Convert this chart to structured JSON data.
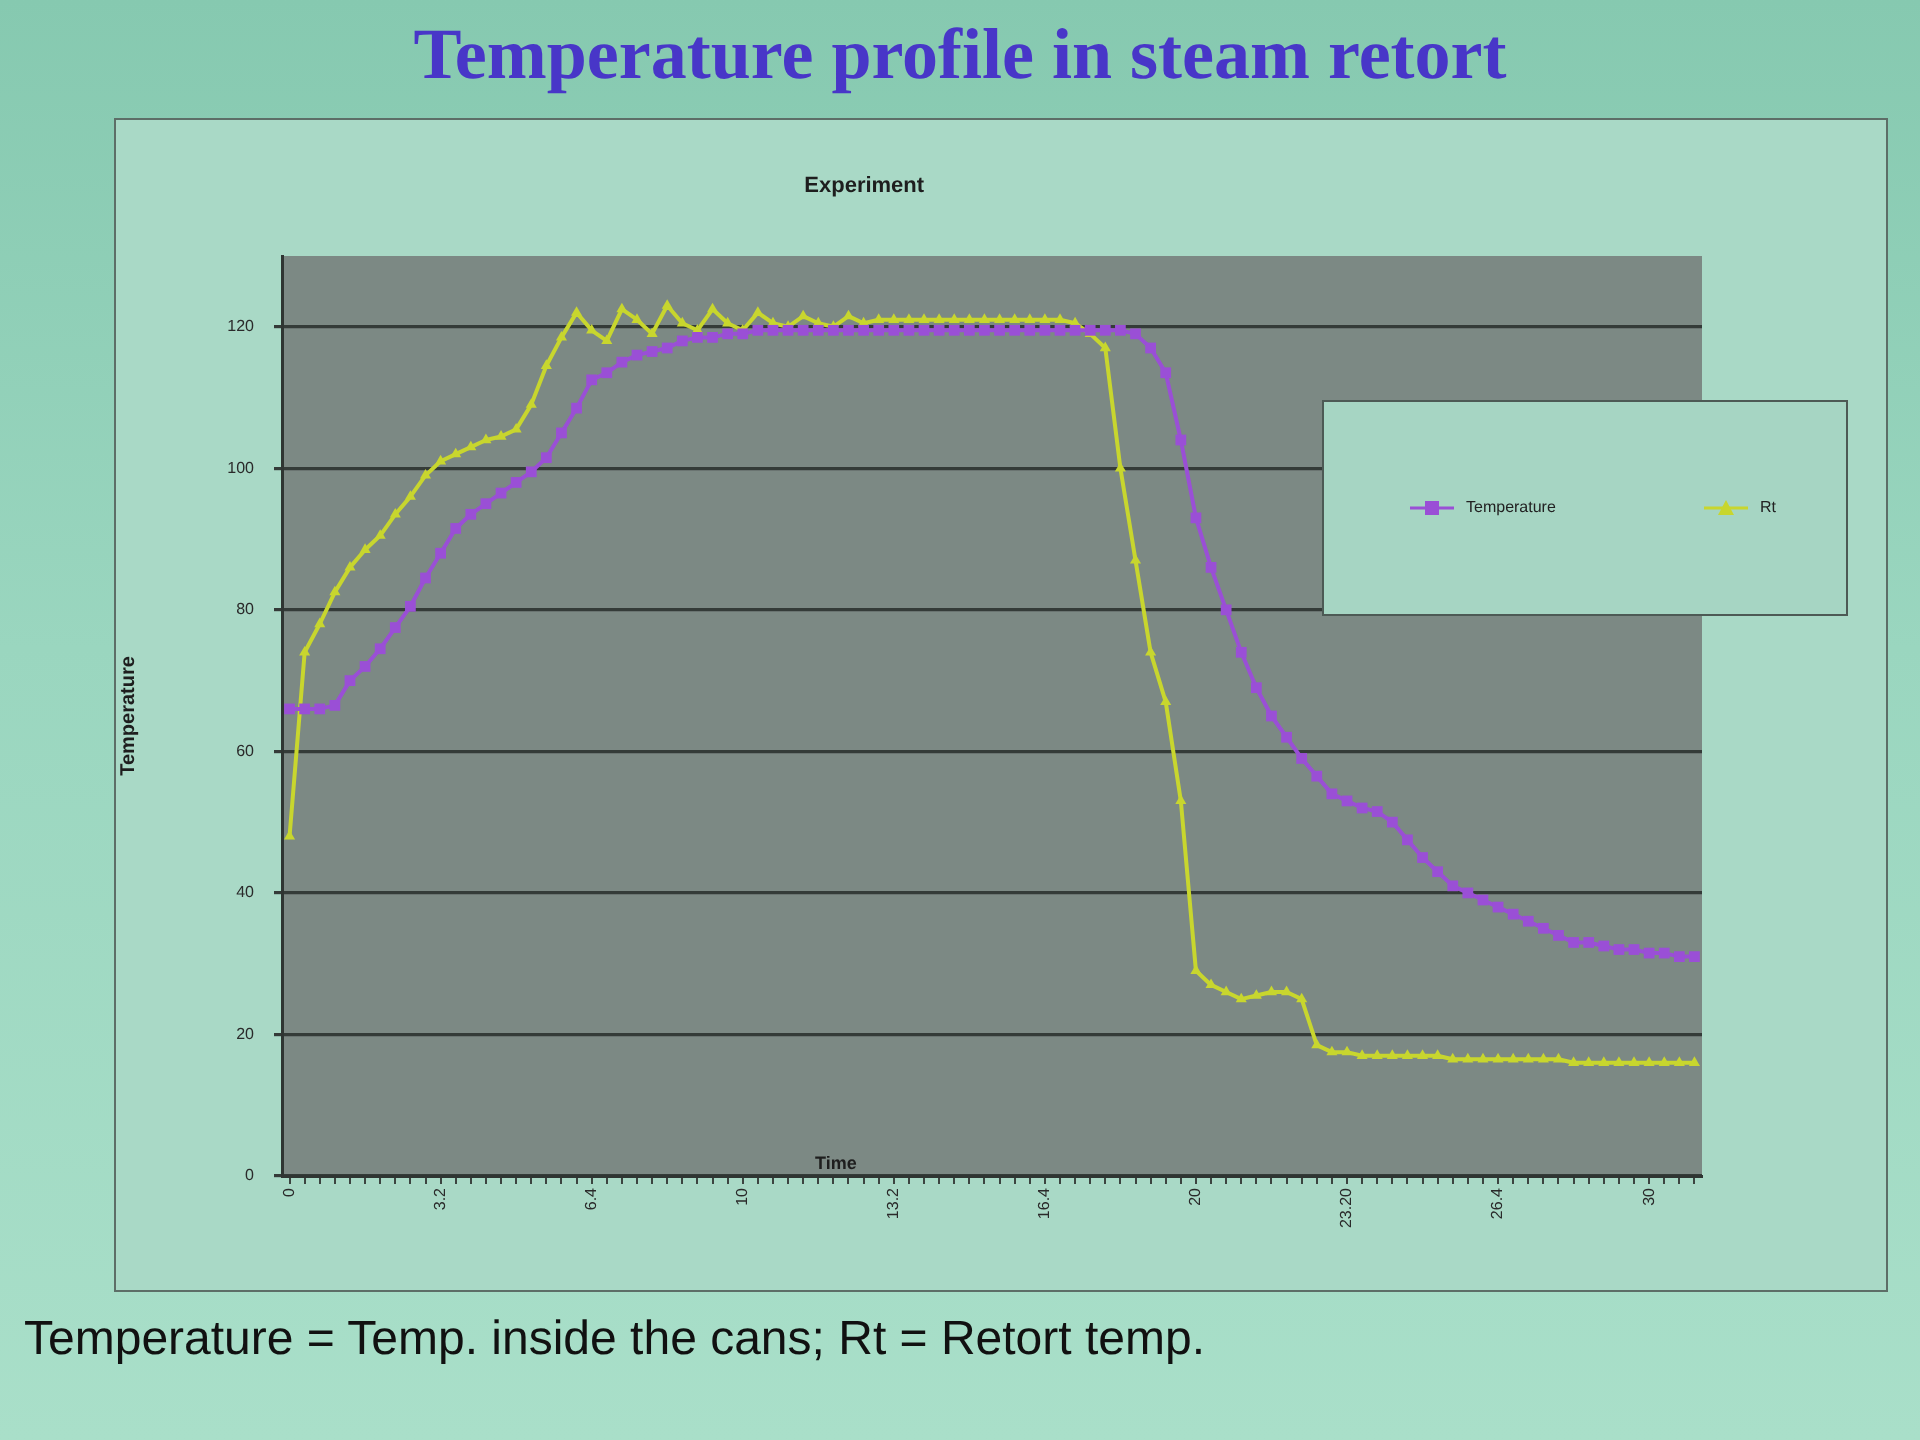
{
  "chart_data": {
    "type": "line",
    "title": "Temperature profile in steam retort",
    "subtitle": "Experiment",
    "xlabel": "Time",
    "ylabel": "Temperature",
    "annotations": [
      "Temperature = Temp. inside the cans; Rt = Retort temp."
    ],
    "categories": [
      "0",
      null,
      null,
      null,
      null,
      null,
      null,
      null,
      null,
      null,
      "3.2",
      null,
      null,
      null,
      null,
      null,
      null,
      null,
      null,
      null,
      "6.4",
      null,
      null,
      null,
      null,
      null,
      null,
      null,
      null,
      null,
      "10",
      null,
      null,
      null,
      null,
      null,
      null,
      null,
      null,
      null,
      "13.2",
      null,
      null,
      null,
      null,
      null,
      null,
      null,
      null,
      null,
      "16.4",
      null,
      null,
      null,
      null,
      null,
      null,
      null,
      null,
      null,
      "20",
      null,
      null,
      null,
      null,
      null,
      null,
      null,
      null,
      null,
      "23.20",
      null,
      null,
      null,
      null,
      null,
      null,
      null,
      null,
      null,
      "26.4",
      null,
      null,
      null,
      null,
      null,
      null,
      null,
      null,
      null,
      "30",
      null,
      null,
      null
    ],
    "series": [
      {
        "name": "Temperature",
        "color": "#9a4fd6",
        "marker": "square",
        "values": [
          66,
          66,
          66,
          66.5,
          70,
          72,
          74.5,
          77.5,
          80.5,
          84.5,
          88,
          91.5,
          93.5,
          95,
          96.5,
          98,
          99.5,
          101.5,
          105,
          108.5,
          112.5,
          113.5,
          115,
          116,
          116.5,
          117,
          118,
          118.5,
          118.5,
          119,
          119,
          119.5,
          119.5,
          119.5,
          119.5,
          119.5,
          119.5,
          119.5,
          119.5,
          119.5,
          119.5,
          119.5,
          119.5,
          119.5,
          119.5,
          119.5,
          119.5,
          119.5,
          119.5,
          119.5,
          119.5,
          119.5,
          119.5,
          119.5,
          119.5,
          119.5,
          119,
          117,
          113.5,
          104,
          93,
          86,
          80,
          74,
          69,
          65,
          62,
          59,
          56.5,
          54,
          53,
          52,
          51.5,
          50,
          47.5,
          45,
          43,
          41,
          40,
          39,
          38,
          37,
          36,
          35,
          34,
          33,
          33,
          32.5,
          32,
          32,
          31.5,
          31.5,
          31,
          31
        ]
      },
      {
        "name": "Rt",
        "color": "#c8d62e",
        "marker": "triangle",
        "values": [
          48,
          74,
          78,
          82.5,
          86,
          88.5,
          90.5,
          93.5,
          96,
          99,
          101,
          102,
          103,
          104,
          104.5,
          105.5,
          109,
          114.5,
          118.5,
          122,
          119.5,
          118,
          122.5,
          121,
          119,
          123,
          120.5,
          119.5,
          122.5,
          120.5,
          119.5,
          122,
          120.5,
          120,
          121.5,
          120.5,
          120,
          121.5,
          120.5,
          121,
          121,
          121,
          121,
          121,
          121,
          121,
          121,
          121,
          121,
          121,
          121,
          121,
          120.5,
          119,
          117,
          100,
          87,
          74,
          67,
          53,
          29,
          27,
          26,
          25,
          25.5,
          26,
          26,
          25,
          18.5,
          17.5,
          17.5,
          17,
          17,
          17,
          17,
          17,
          17,
          16.5,
          16.5,
          16.5,
          16.5,
          16.5,
          16.5,
          16.5,
          16.5,
          16,
          16,
          16,
          16,
          16,
          16,
          16,
          16,
          16
        ]
      }
    ],
    "ylim": [
      0,
      130
    ],
    "yticks": [
      0,
      20,
      40,
      60,
      80,
      100,
      120
    ],
    "grid": "y",
    "legend": "right"
  }
}
